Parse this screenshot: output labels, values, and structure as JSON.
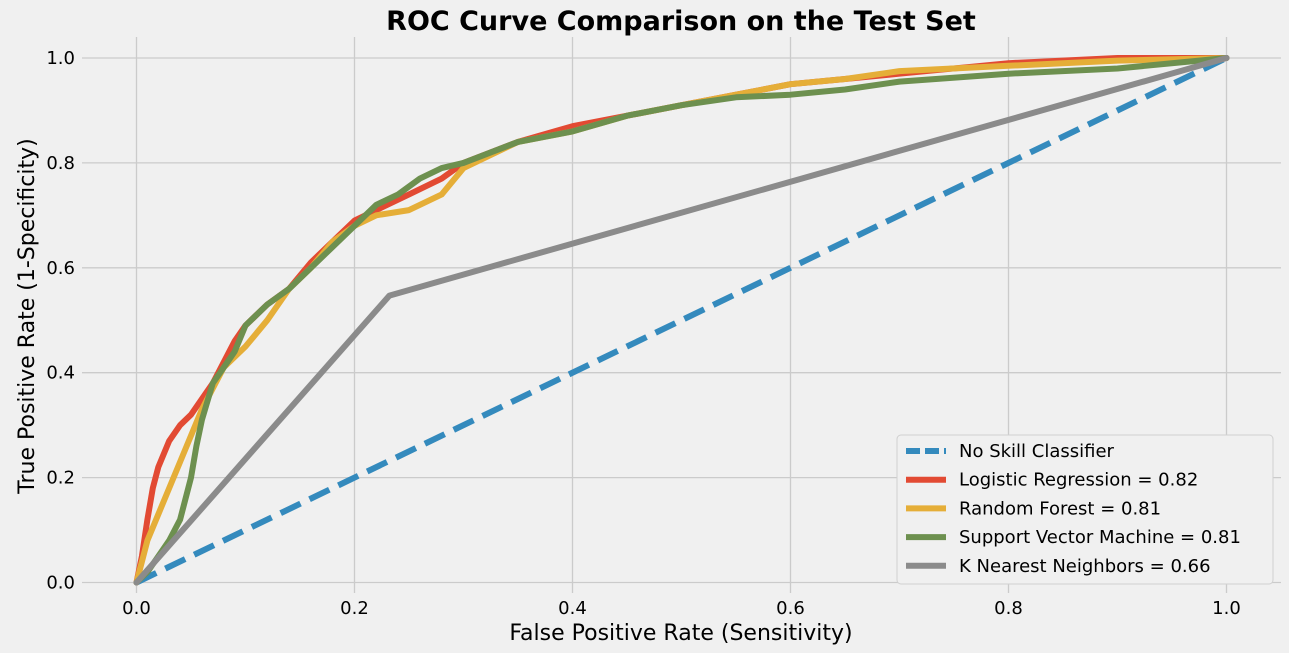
{
  "chart_data": {
    "type": "line",
    "title": "ROC Curve Comparison on the Test Set",
    "xlabel": "False Positive Rate (Sensitivity)",
    "ylabel": "True Positive Rate (1-Specificity)",
    "xlim": [
      -0.05,
      1.05
    ],
    "ylim": [
      -0.02,
      1.04
    ],
    "xticks": [
      0.0,
      0.2,
      0.4,
      0.6,
      0.8,
      1.0
    ],
    "yticks": [
      0.0,
      0.2,
      0.4,
      0.6,
      0.8,
      1.0
    ],
    "xtick_labels": [
      "0.0",
      "0.2",
      "0.4",
      "0.6",
      "0.8",
      "1.0"
    ],
    "ytick_labels": [
      "0.0",
      "0.2",
      "0.4",
      "0.6",
      "0.8",
      "1.0"
    ],
    "grid": true,
    "legend_position": "lower-right",
    "background": "#f0f0f0",
    "grid_color": "#cbcbcb",
    "series": [
      {
        "name": "No Skill Classifier",
        "color": "#348ABD",
        "dash": "dashed",
        "x": [
          0.0,
          1.0
        ],
        "y": [
          0.0,
          1.0
        ]
      },
      {
        "name": "Logistic Regression = 0.82",
        "color": "#E24A33",
        "dash": "solid",
        "x": [
          0.0,
          0.005,
          0.01,
          0.015,
          0.02,
          0.03,
          0.04,
          0.05,
          0.06,
          0.07,
          0.08,
          0.09,
          0.1,
          0.12,
          0.14,
          0.16,
          0.18,
          0.2,
          0.22,
          0.25,
          0.28,
          0.3,
          0.35,
          0.4,
          0.45,
          0.5,
          0.55,
          0.6,
          0.65,
          0.7,
          0.8,
          0.9,
          1.0
        ],
        "y": [
          0.0,
          0.05,
          0.12,
          0.18,
          0.22,
          0.27,
          0.3,
          0.32,
          0.35,
          0.38,
          0.42,
          0.46,
          0.49,
          0.53,
          0.56,
          0.61,
          0.65,
          0.69,
          0.71,
          0.74,
          0.77,
          0.8,
          0.84,
          0.87,
          0.89,
          0.91,
          0.93,
          0.95,
          0.96,
          0.97,
          0.99,
          1.0,
          1.0
        ]
      },
      {
        "name": "Random Forest = 0.81",
        "color": "#E5AE38",
        "dash": "solid",
        "x": [
          0.0,
          0.01,
          0.02,
          0.03,
          0.04,
          0.05,
          0.06,
          0.07,
          0.08,
          0.1,
          0.12,
          0.14,
          0.16,
          0.18,
          0.2,
          0.22,
          0.25,
          0.28,
          0.3,
          0.35,
          0.4,
          0.45,
          0.5,
          0.55,
          0.6,
          0.65,
          0.7,
          0.8,
          0.9,
          1.0
        ],
        "y": [
          0.0,
          0.08,
          0.13,
          0.18,
          0.23,
          0.28,
          0.33,
          0.37,
          0.41,
          0.45,
          0.5,
          0.56,
          0.6,
          0.65,
          0.68,
          0.7,
          0.71,
          0.74,
          0.79,
          0.84,
          0.86,
          0.89,
          0.91,
          0.93,
          0.95,
          0.96,
          0.975,
          0.985,
          0.995,
          1.0
        ]
      },
      {
        "name": "Support Vector Machine = 0.81",
        "color": "#6D904F",
        "dash": "solid",
        "x": [
          0.0,
          0.01,
          0.02,
          0.03,
          0.04,
          0.05,
          0.055,
          0.06,
          0.07,
          0.08,
          0.09,
          0.1,
          0.12,
          0.14,
          0.16,
          0.18,
          0.2,
          0.22,
          0.24,
          0.26,
          0.28,
          0.3,
          0.35,
          0.4,
          0.45,
          0.5,
          0.55,
          0.6,
          0.65,
          0.7,
          0.8,
          0.9,
          1.0
        ],
        "y": [
          0.0,
          0.02,
          0.05,
          0.08,
          0.12,
          0.2,
          0.26,
          0.31,
          0.38,
          0.41,
          0.44,
          0.49,
          0.53,
          0.56,
          0.6,
          0.64,
          0.68,
          0.72,
          0.74,
          0.77,
          0.79,
          0.8,
          0.84,
          0.86,
          0.89,
          0.91,
          0.925,
          0.93,
          0.94,
          0.955,
          0.97,
          0.98,
          1.0
        ]
      },
      {
        "name": "K Nearest Neighbors = 0.66",
        "color": "#8B8B8B",
        "dash": "solid",
        "x": [
          0.0,
          0.232,
          1.0
        ],
        "y": [
          0.0,
          0.547,
          1.0
        ]
      }
    ]
  }
}
